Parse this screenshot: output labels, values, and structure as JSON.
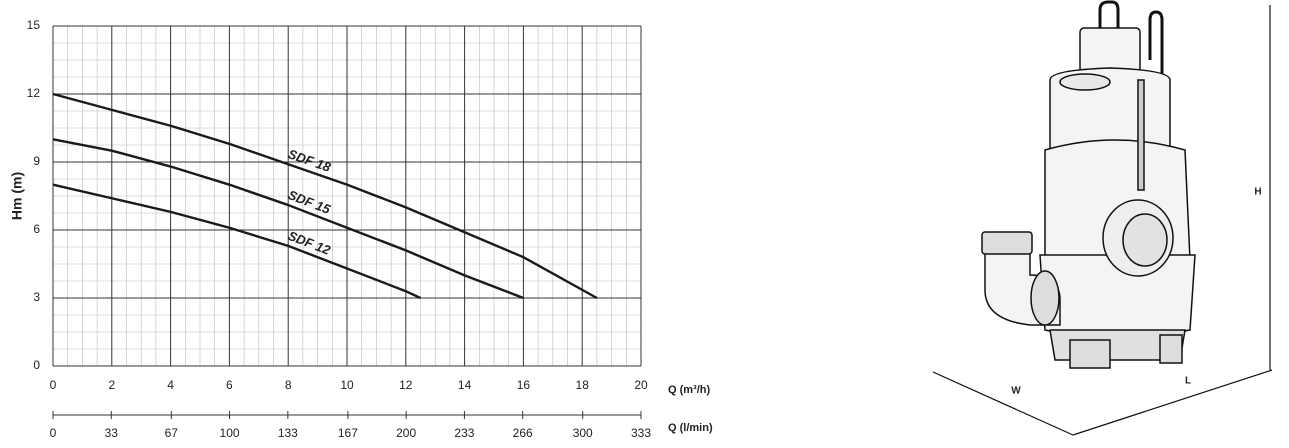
{
  "chart_data": {
    "type": "line",
    "ylabel": "Hm (m)",
    "xlabel": "Q (m³/h)",
    "x2label": "Q (l/min)",
    "xlim": [
      0,
      20
    ],
    "xticks": [
      0,
      2,
      4,
      6,
      8,
      10,
      12,
      14,
      16,
      18,
      20
    ],
    "ylim": [
      0,
      15
    ],
    "yticks": [
      0,
      3,
      6,
      9,
      12,
      15
    ],
    "x2lim": [
      0,
      333
    ],
    "x2ticks": [
      0,
      33,
      67,
      100,
      133,
      167,
      200,
      233,
      266,
      300,
      333
    ],
    "grid": true,
    "series": [
      {
        "name": "SDF 18",
        "color": "#1a1a1a",
        "x": [
          0,
          2,
          4,
          6,
          8,
          10,
          12,
          14,
          16,
          18.5
        ],
        "values": [
          12,
          11.3,
          10.6,
          9.8,
          8.9,
          8.0,
          7.0,
          5.9,
          4.8,
          3.0
        ]
      },
      {
        "name": "SDF 15",
        "color": "#1a1a1a",
        "x": [
          0,
          2,
          4,
          6,
          8,
          10,
          12,
          14,
          16
        ],
        "values": [
          10,
          9.5,
          8.8,
          8.0,
          7.1,
          6.1,
          5.1,
          4.0,
          3.0
        ]
      },
      {
        "name": "SDF 12",
        "color": "#1a1a1a",
        "x": [
          0,
          2,
          4,
          6,
          8,
          10,
          12,
          12.5
        ],
        "values": [
          8,
          7.4,
          6.8,
          6.1,
          5.3,
          4.3,
          3.3,
          3.0
        ]
      }
    ]
  },
  "drawing": {
    "height_label": "H",
    "width_label": "W",
    "length_label": "L"
  }
}
